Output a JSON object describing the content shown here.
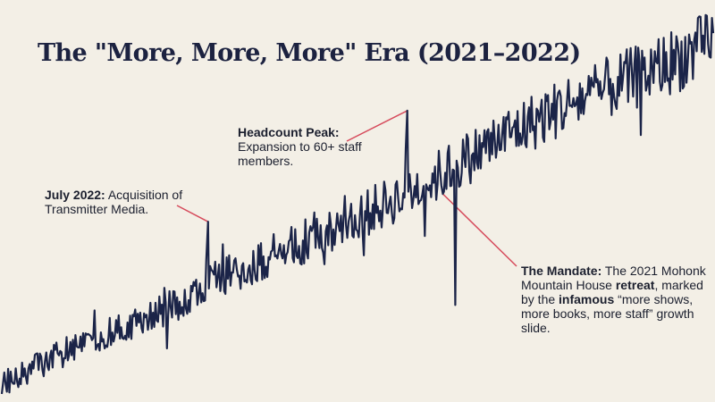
{
  "colors": {
    "background": "#f3efe6",
    "line": "#1b2448",
    "accent": "#d64a5b",
    "title": "#1c2240"
  },
  "chart_data": {
    "type": "line",
    "title": "The \"More, More, More\" Era (2021–2022)",
    "xlabel": "",
    "ylabel": "",
    "x_range": [
      0,
      100
    ],
    "y_range": [
      0,
      100
    ],
    "axes_visible": false,
    "grid": false,
    "legend": "none",
    "series": [
      {
        "name": "growth",
        "trend": [
          [
            0,
            4
          ],
          [
            10,
            13
          ],
          [
            20,
            20
          ],
          [
            30,
            30
          ],
          [
            40,
            38
          ],
          [
            50,
            46
          ],
          [
            60,
            55
          ],
          [
            70,
            66
          ],
          [
            80,
            75
          ],
          [
            90,
            82
          ],
          [
            100,
            90
          ]
        ],
        "noise_amplitude": 6
      }
    ],
    "spikes": [
      {
        "x": 29,
        "y": 45,
        "label_key": "july"
      },
      {
        "x": 57,
        "y": 73,
        "label_key": "headcount"
      },
      {
        "x": 62,
        "y": 52,
        "label_key": "mandate"
      }
    ]
  },
  "annotations": {
    "july": {
      "bold": "July 2022:",
      "text": " Acquisition of Transmitter Media."
    },
    "headcount": {
      "bold": "Headcount Peak:",
      "text": " Expansion to 60+ staff members."
    },
    "mandate": {
      "bold_1": "The Mandate:",
      "text_1": " The 2021 Mohonk Mountain House ",
      "bold_2": "retreat",
      "text_2": ", marked by the ",
      "bold_3": "infamous",
      "text_3": " “more shows, more books, more staff” growth slide."
    }
  }
}
